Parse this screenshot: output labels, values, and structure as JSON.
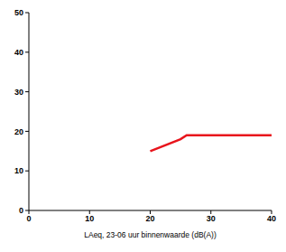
{
  "chart_data": {
    "type": "line",
    "x_label": "LAeq, 23-06 uur binnenwaarde (dB(A))",
    "x": [
      20,
      25,
      26,
      40
    ],
    "series": [
      {
        "name": "",
        "color": "#e8141c",
        "values": [
          15,
          18,
          19,
          19
        ]
      }
    ],
    "xlim": [
      0,
      40
    ],
    "xticks": [
      0,
      10,
      20,
      30,
      40
    ],
    "ylim": [
      0,
      50
    ],
    "yticks": [
      0,
      10,
      20,
      30,
      40,
      50
    ],
    "grid": false
  }
}
